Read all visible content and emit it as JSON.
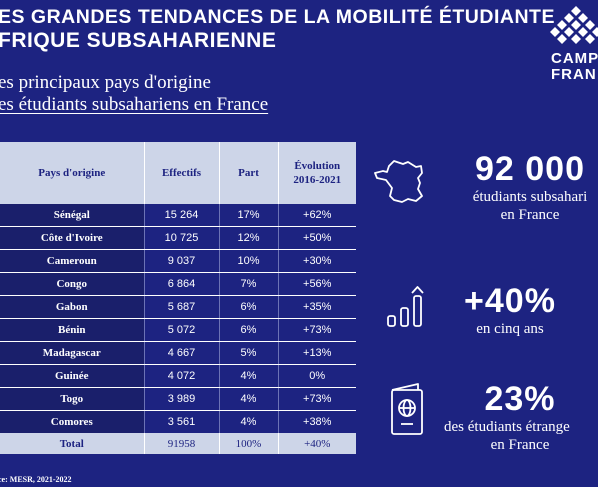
{
  "header": {
    "title_line1": "ES GRANDES TENDANCES DE LA MOBILITÉ ÉTUDIANTE",
    "title_line2": "FRIQUE SUBSAHARIENNE",
    "subtitle_line1": "es principaux pays d'origine",
    "subtitle_line2": "es étudiants subsahariens en France"
  },
  "logo": {
    "line1": "CAMP",
    "line2": "FRAN"
  },
  "table": {
    "headers": [
      "Pays d'origine",
      "Effectifs",
      "Part",
      "Évolution 2016-2021"
    ],
    "rows": [
      [
        "Sénégal",
        "15 264",
        "17%",
        "+62%"
      ],
      [
        "Côte d'Ivoire",
        "10 725",
        "12%",
        "+50%"
      ],
      [
        "Cameroun",
        "9 037",
        "10%",
        "+30%"
      ],
      [
        "Congo",
        "6 864",
        "7%",
        "+56%"
      ],
      [
        "Gabon",
        "5 687",
        "6%",
        "+35%"
      ],
      [
        "Bénin",
        "5 072",
        "6%",
        "+73%"
      ],
      [
        "Madagascar",
        "4 667",
        "5%",
        "+13%"
      ],
      [
        "Guinée",
        "4 072",
        "4%",
        "0%"
      ],
      [
        "Togo",
        "3 989",
        "4%",
        "+73%"
      ],
      [
        "Comores",
        "3 561",
        "4%",
        "+38%"
      ]
    ],
    "total": [
      "Total",
      "91958",
      "100%",
      "+40%"
    ]
  },
  "stats": [
    {
      "value": "92 000",
      "line1": "étudiants subsahari",
      "line2": "en France",
      "icon": "france-map-icon"
    },
    {
      "value": "+40%",
      "line1": "en cinq ans",
      "line2": "",
      "icon": "growth-bars-icon"
    },
    {
      "value": "23%",
      "line1": "des étudiants étrange",
      "line2": "en France",
      "icon": "passport-icon"
    }
  ],
  "source": "ce: MESR, 2021-2022"
}
